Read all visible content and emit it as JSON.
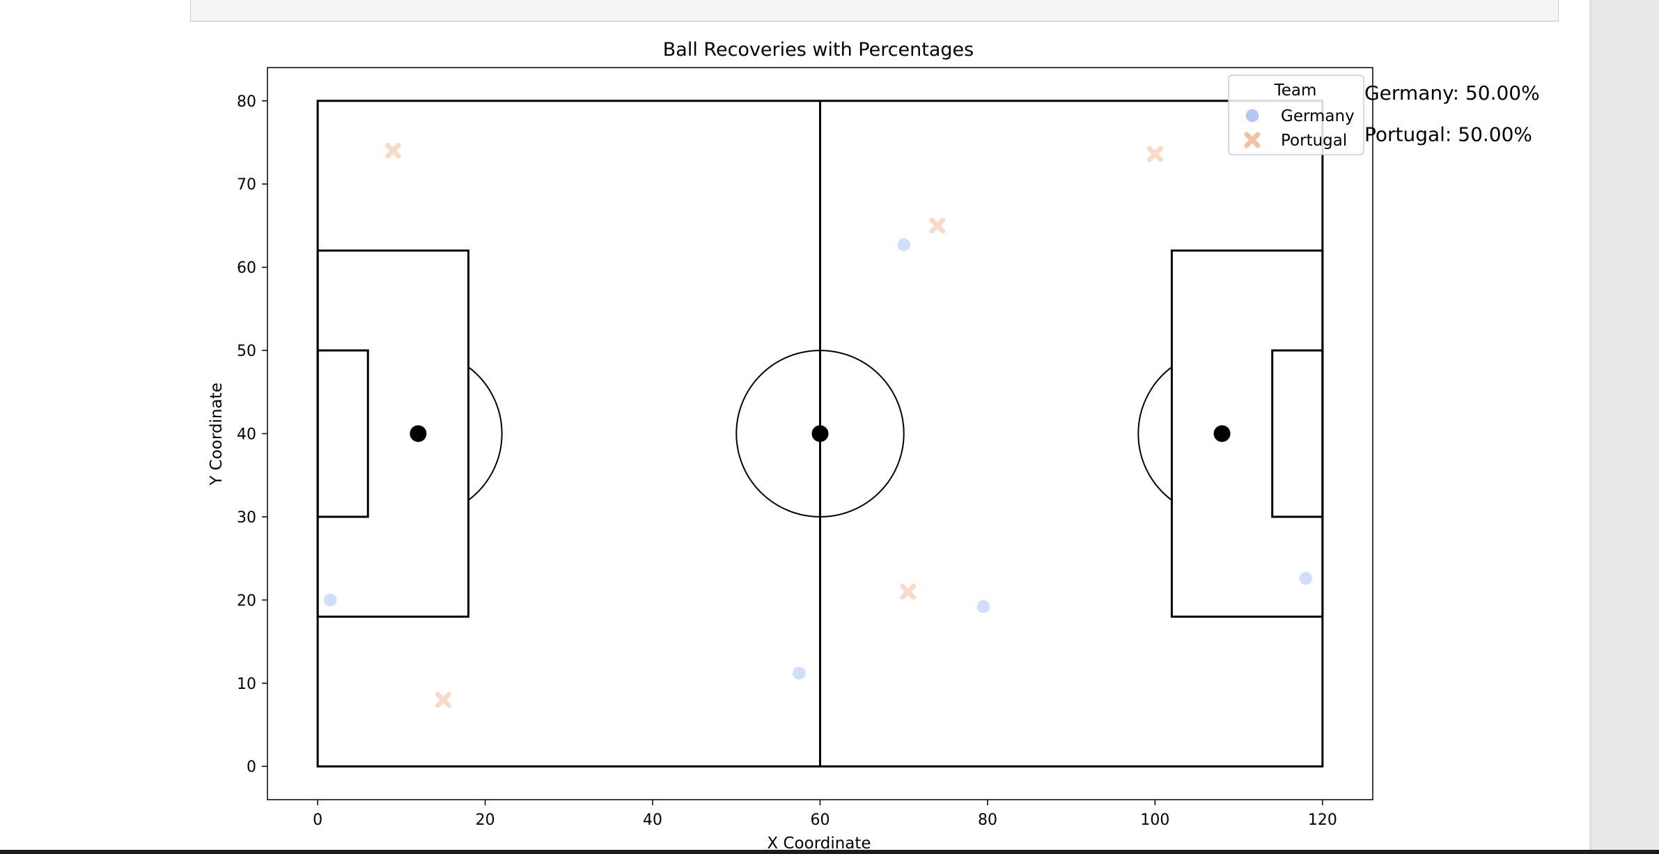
{
  "chart_data": {
    "type": "scatter",
    "title": "Ball Recoveries with Percentages",
    "xlabel": "X Coordinate",
    "ylabel": "Y Coordinate",
    "xlim": [
      -6,
      126
    ],
    "ylim": [
      -4,
      84
    ],
    "xticks": [
      0,
      20,
      40,
      60,
      80,
      100,
      120
    ],
    "yticks": [
      0,
      10,
      20,
      30,
      40,
      50,
      60,
      70,
      80
    ],
    "grid": false,
    "legend": {
      "title": "Team",
      "placement": "top-right"
    },
    "series": [
      {
        "name": "Germany",
        "marker": "circle",
        "color": "#b4c8f4",
        "points": [
          [
            1.5,
            20
          ],
          [
            57.5,
            11.2
          ],
          [
            70,
            62.7
          ],
          [
            79.5,
            19.2
          ],
          [
            118,
            22.6
          ]
        ]
      },
      {
        "name": "Portugal",
        "marker": "x",
        "color": "#f2c2a4",
        "points": [
          [
            9,
            74
          ],
          [
            15,
            8
          ],
          [
            74,
            65
          ],
          [
            70.5,
            21
          ],
          [
            100,
            73.6
          ]
        ]
      }
    ],
    "annotations": [
      {
        "text": "Germany: 50.00%",
        "x": 125,
        "y": 81
      },
      {
        "text": "Portugal: 50.00%",
        "x": 125,
        "y": 76
      }
    ],
    "pitch": {
      "length": 120,
      "width": 80,
      "penalty_box": {
        "depth": 18,
        "y_min": 18,
        "y_max": 62
      },
      "six_yard_box": {
        "depth": 6,
        "y_min": 30,
        "y_max": 50
      },
      "penalty_spot_distance": 12,
      "center_circle_radius": 10,
      "line_color": "#000000"
    }
  }
}
